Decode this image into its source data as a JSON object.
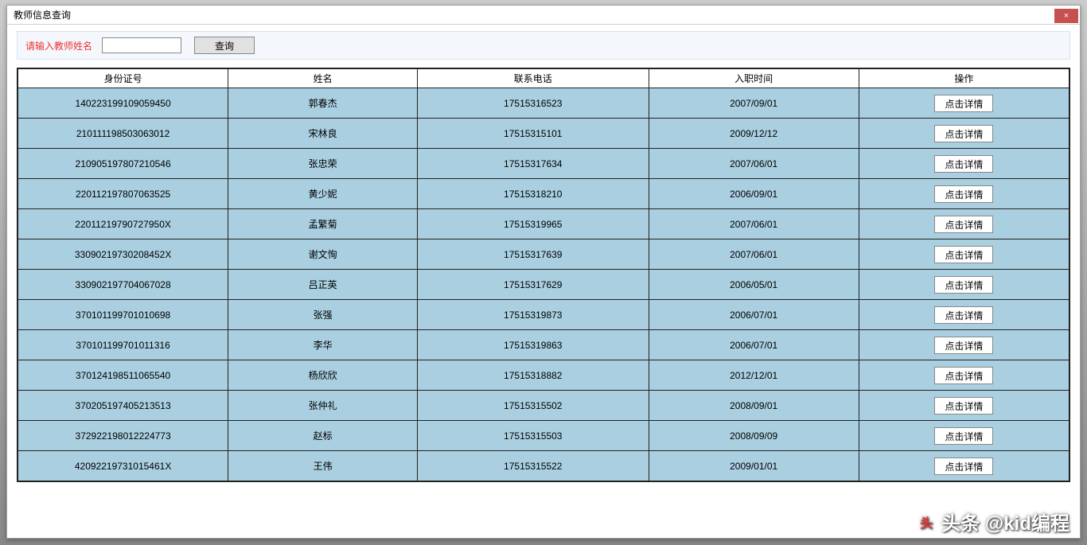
{
  "window": {
    "title": "教师信息查询",
    "close_label": "×"
  },
  "search": {
    "label": "请输入教师姓名",
    "value": "",
    "button_label": "查询"
  },
  "table": {
    "columns": [
      "身份证号",
      "姓名",
      "联系电话",
      "入职时间",
      "操作"
    ],
    "action_label": "点击详情",
    "rows": [
      {
        "id": "140223199109059450",
        "name": "郭春杰",
        "phone": "17515316523",
        "date": "2007/09/01"
      },
      {
        "id": "210111198503063012",
        "name": "宋林良",
        "phone": "17515315101",
        "date": "2009/12/12"
      },
      {
        "id": "210905197807210546",
        "name": "张忠荣",
        "phone": "17515317634",
        "date": "2007/06/01"
      },
      {
        "id": "220112197807063525",
        "name": "黄少妮",
        "phone": "17515318210",
        "date": "2006/09/01"
      },
      {
        "id": "22011219790727950X",
        "name": "孟繁菊",
        "phone": "17515319965",
        "date": "2007/06/01"
      },
      {
        "id": "33090219730208452X",
        "name": "谢文恂",
        "phone": "17515317639",
        "date": "2007/06/01"
      },
      {
        "id": "330902197704067028",
        "name": "吕正英",
        "phone": "17515317629",
        "date": "2006/05/01"
      },
      {
        "id": "370101199701010698",
        "name": "张强",
        "phone": "17515319873",
        "date": "2006/07/01"
      },
      {
        "id": "370101199701011316",
        "name": "李华",
        "phone": "17515319863",
        "date": "2006/07/01"
      },
      {
        "id": "370124198511065540",
        "name": "杨欣欣",
        "phone": "17515318882",
        "date": "2012/12/01"
      },
      {
        "id": "370205197405213513",
        "name": "张仲礼",
        "phone": "17515315502",
        "date": "2008/09/01"
      },
      {
        "id": "372922198012224773",
        "name": "赵标",
        "phone": "17515315503",
        "date": "2008/09/09"
      },
      {
        "id": "42092219731015461X",
        "name": "王伟",
        "phone": "17515315522",
        "date": "2009/01/01"
      }
    ]
  },
  "colors": {
    "row_bg": "#a9cfe0",
    "header_bg": "#ffffff",
    "border": "#222222",
    "search_bg": "#f4f8fd",
    "label_color": "#ee3333",
    "close_bg": "#c75050"
  },
  "watermark": {
    "text": "头条 @kid编程"
  }
}
